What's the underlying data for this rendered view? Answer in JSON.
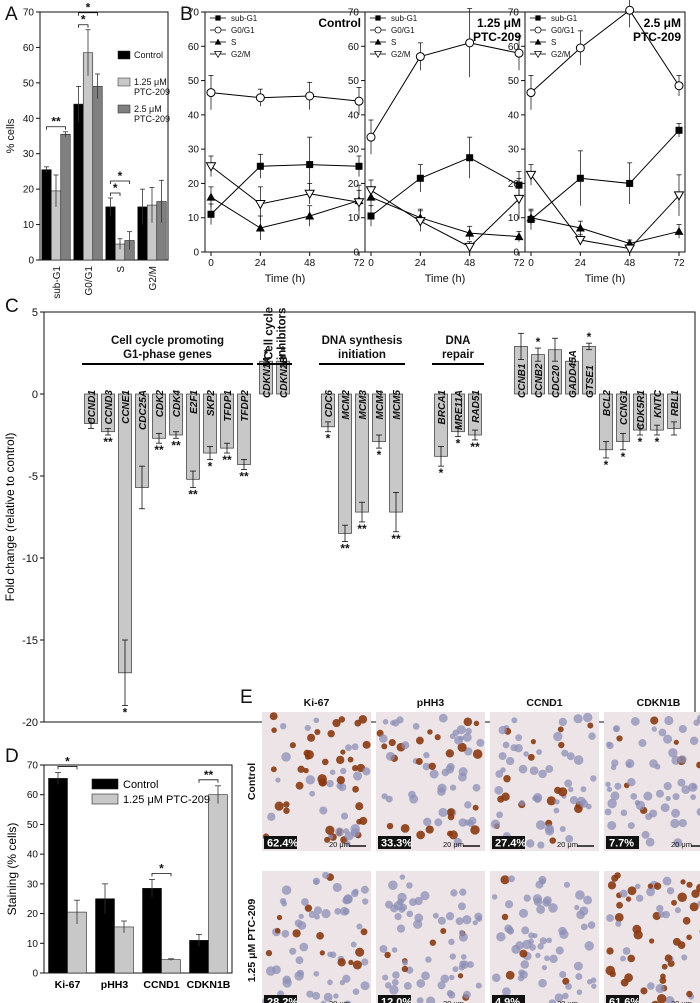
{
  "panel_labels": [
    "A",
    "B",
    "C",
    "D",
    "E"
  ],
  "chart_data": [
    {
      "id": "A",
      "type": "bar",
      "ylabel": "% cells",
      "ylim": [
        0,
        70
      ],
      "yticks": [
        0,
        10,
        20,
        30,
        40,
        50,
        60,
        70
      ],
      "categories": [
        "sub-G1",
        "G0/G1",
        "S",
        "G2/M"
      ],
      "series": [
        {
          "name": "Control",
          "color": "#000000",
          "values": [
            25.5,
            44,
            15,
            15
          ],
          "errors": [
            0.8,
            5,
            2.5,
            5
          ]
        },
        {
          "name": "1.25 μM PTC-209",
          "color": "#c8c8c8",
          "values": [
            19.5,
            58.5,
            4.5,
            15.5
          ],
          "errors": [
            4.5,
            6.5,
            1.5,
            5
          ]
        },
        {
          "name": "2.5 μM PTC-209",
          "color": "#808080",
          "values": [
            35.5,
            49,
            5.5,
            16.5
          ],
          "errors": [
            0.7,
            3.5,
            2.5,
            6
          ]
        }
      ],
      "legend": [
        "Control",
        "1.25 μM",
        "PTC-209",
        "2.5 μM",
        "PTC-209"
      ],
      "significance": [
        {
          "category": 0,
          "a": 0,
          "b": 2,
          "label": "**"
        },
        {
          "category": 1,
          "a": 0,
          "b": 1,
          "label": "*"
        },
        {
          "category": 1,
          "a": 0,
          "b": 2,
          "label": "*"
        },
        {
          "category": 2,
          "a": 0,
          "b": 1,
          "label": "*"
        },
        {
          "category": 2,
          "a": 0,
          "b": 2,
          "label": "*"
        }
      ]
    },
    {
      "id": "B",
      "type": "line",
      "xlabel": "Time (h)",
      "xticks": [
        0,
        24,
        48,
        72
      ],
      "ylim": [
        0,
        70
      ],
      "yticks": [
        0,
        10,
        20,
        30,
        40,
        50,
        60,
        70
      ],
      "legend": [
        "sub-G1",
        "G0/G1",
        "S",
        "G2/M"
      ],
      "plots": [
        {
          "title": "Control",
          "series": [
            {
              "name": "sub-G1",
              "marker": "square",
              "x": [
                0,
                24,
                48,
                72
              ],
              "y": [
                11,
                25,
                25.5,
                25
              ],
              "err": [
                3,
                3.5,
                8,
                3
              ]
            },
            {
              "name": "G0/G1",
              "marker": "circle",
              "x": [
                0,
                24,
                48,
                72
              ],
              "y": [
                46.5,
                45,
                45.5,
                44
              ],
              "err": [
                5,
                2.5,
                4,
                4
              ]
            },
            {
              "name": "S",
              "marker": "triangle-up",
              "x": [
                0,
                24,
                48,
                72
              ],
              "y": [
                16,
                7,
                10.5,
                15
              ],
              "err": [
                3,
                3.5,
                3,
                3
              ]
            },
            {
              "name": "G2/M",
              "marker": "triangle-down",
              "x": [
                0,
                24,
                48,
                72
              ],
              "y": [
                25,
                14,
                17,
                14.5
              ],
              "err": [
                3,
                5,
                3,
                5
              ]
            }
          ]
        },
        {
          "title": [
            "1.25 μM",
            "PTC-209"
          ],
          "series": [
            {
              "name": "sub-G1",
              "marker": "square",
              "x": [
                0,
                24,
                48,
                72
              ],
              "y": [
                10.5,
                21.5,
                27.5,
                19.5
              ],
              "err": [
                3,
                4,
                6,
                4
              ]
            },
            {
              "name": "G0/G1",
              "marker": "circle",
              "x": [
                0,
                24,
                48,
                72
              ],
              "y": [
                33.5,
                57,
                61,
                58
              ],
              "err": [
                5,
                4,
                10,
                5
              ]
            },
            {
              "name": "S",
              "marker": "triangle-up",
              "x": [
                0,
                24,
                48,
                72
              ],
              "y": [
                16,
                10,
                5.5,
                4.5
              ],
              "err": [
                3,
                2.5,
                2,
                1.5
              ]
            },
            {
              "name": "G2/M",
              "marker": "triangle-down",
              "x": [
                0,
                24,
                48,
                72
              ],
              "y": [
                18,
                9,
                1.5,
                15.5
              ],
              "err": [
                3,
                3,
                1.5,
                6
              ]
            }
          ]
        },
        {
          "title": [
            "2.5 μM",
            "PTC-209"
          ],
          "series": [
            {
              "name": "sub-G1",
              "marker": "square",
              "x": [
                0,
                24,
                48,
                72
              ],
              "y": [
                9.5,
                21.5,
                20,
                35.5
              ],
              "err": [
                3,
                8,
                6,
                2
              ]
            },
            {
              "name": "G0/G1",
              "marker": "circle",
              "x": [
                0,
                24,
                48,
                72
              ],
              "y": [
                46.5,
                59.5,
                70.5,
                48.5
              ],
              "err": [
                5,
                5,
                5,
                3
              ]
            },
            {
              "name": "S",
              "marker": "triangle-up",
              "x": [
                0,
                24,
                48,
                72
              ],
              "y": [
                10,
                7,
                2.5,
                6
              ],
              "err": [
                2,
                2,
                1,
                2
              ]
            },
            {
              "name": "G2/M",
              "marker": "triangle-down",
              "x": [
                0,
                24,
                48,
                72
              ],
              "y": [
                22.5,
                3.5,
                1,
                16.5
              ],
              "err": [
                3,
                1.5,
                1,
                6
              ]
            }
          ]
        }
      ]
    },
    {
      "id": "C",
      "type": "bar",
      "ylabel": "Fold change (relative to control)",
      "ylim": [
        -20,
        5
      ],
      "yticks": [
        5,
        0,
        -5,
        -10,
        -15,
        -20
      ],
      "groups": [
        {
          "title": [
            "Cell cycle promoting",
            "G1-phase genes"
          ],
          "first": 0,
          "last": 9
        },
        {
          "title": [
            "Cell cycle",
            "inhibitors"
          ],
          "first": 10,
          "last": 11
        },
        {
          "title": [
            "DNA synthesis",
            "initiation"
          ],
          "first": 12,
          "last": 16
        },
        {
          "title": [
            "DNA",
            "repair"
          ],
          "first": 17,
          "last": 19
        }
      ],
      "genes": [
        {
          "name": "CCND1",
          "value": -1.8,
          "error": 0.3,
          "sig": ""
        },
        {
          "name": "CCND3",
          "value": -2.3,
          "error": 0.2,
          "sig": "**"
        },
        {
          "name": "CCNE1",
          "value": -17,
          "error": 2,
          "sig": "*"
        },
        {
          "name": "CDC25A",
          "value": -5.7,
          "error": 1.3,
          "sig": ""
        },
        {
          "name": "CDK2",
          "value": -2.7,
          "error": 0.3,
          "sig": "**"
        },
        {
          "name": "CDK4",
          "value": -2.5,
          "error": 0.2,
          "sig": "**"
        },
        {
          "name": "E2F1",
          "value": -5.2,
          "error": 0.5,
          "sig": "**"
        },
        {
          "name": "SKP2",
          "value": -3.6,
          "error": 0.4,
          "sig": "*"
        },
        {
          "name": "TFDP1",
          "value": -3.3,
          "error": 0.3,
          "sig": "**"
        },
        {
          "name": "TFDP2",
          "value": -4.3,
          "error": 0.3,
          "sig": "**"
        },
        {
          "name": "CDKN1A",
          "value": 2.0,
          "error": 0.1,
          "sig": "*"
        },
        {
          "name": "CDKN2B",
          "value": 2.0,
          "error": 0.3,
          "sig": "*"
        },
        {
          "name": "CDC6",
          "value": -2.0,
          "error": 0.3,
          "sig": "*"
        },
        {
          "name": "MCM2",
          "value": -8.5,
          "error": 0.5,
          "sig": "**"
        },
        {
          "name": "MCM3",
          "value": -7.2,
          "error": 0.6,
          "sig": "**"
        },
        {
          "name": "MCM4",
          "value": -2.9,
          "error": 0.4,
          "sig": "*"
        },
        {
          "name": "MCM5",
          "value": -7.2,
          "error": 1.2,
          "sig": "**"
        },
        {
          "name": "BRCA1",
          "value": -3.8,
          "error": 0.6,
          "sig": "*"
        },
        {
          "name": "MRE11A",
          "value": -2.3,
          "error": 0.3,
          "sig": "*"
        },
        {
          "name": "RAD51",
          "value": -2.5,
          "error": 0.3,
          "sig": "**"
        },
        {
          "name": "CCNB1",
          "value": 2.9,
          "error": 0.8,
          "sig": ""
        },
        {
          "name": "CCNB2",
          "value": 2.4,
          "error": 0.4,
          "sig": "*"
        },
        {
          "name": "CDC20",
          "value": 2.7,
          "error": 0.7,
          "sig": ""
        },
        {
          "name": "GADD45A",
          "value": 2.0,
          "error": 0.2,
          "sig": ""
        },
        {
          "name": "GTSE1",
          "value": 2.9,
          "error": 0.2,
          "sig": "*"
        },
        {
          "name": "BCL2",
          "value": -3.4,
          "error": 0.5,
          "sig": "*"
        },
        {
          "name": "CCNG1",
          "value": -2.9,
          "error": 0.5,
          "sig": "*"
        },
        {
          "name": "CDK5R1",
          "value": -2.2,
          "error": 0.3,
          "sig": "*"
        },
        {
          "name": "KNTC",
          "value": -2.2,
          "error": 0.3,
          "sig": "*"
        },
        {
          "name": "RBL1",
          "value": -2.1,
          "error": 0.4,
          "sig": ""
        }
      ]
    },
    {
      "id": "D",
      "type": "bar",
      "ylabel": "Staining (% cells)",
      "ylim": [
        0,
        70
      ],
      "yticks": [
        0,
        10,
        20,
        30,
        40,
        50,
        60,
        70
      ],
      "categories": [
        "Ki-67",
        "pHH3",
        "CCND1",
        "CDKN1B"
      ],
      "series": [
        {
          "name": "Control",
          "color": "#000000",
          "values": [
            65.5,
            25,
            28.5,
            11
          ],
          "errors": [
            2,
            5,
            3,
            2
          ]
        },
        {
          "name": "1.25 μM PTC-209",
          "color": "#c8c8c8",
          "values": [
            20.5,
            15.5,
            4.5,
            60
          ],
          "errors": [
            4,
            2,
            0.3,
            3
          ]
        }
      ],
      "significance": [
        {
          "category": 0,
          "label": "*"
        },
        {
          "category": 2,
          "label": "*"
        },
        {
          "category": 3,
          "label": "**"
        }
      ]
    }
  ],
  "panel_e": {
    "columns": [
      "Ki-67",
      "pHH3",
      "CCND1",
      "CDKN1B"
    ],
    "rows": [
      "Control",
      "1.25 μM PTC-209"
    ],
    "scale_bar": "20 μm",
    "percentages": [
      [
        "62.4%",
        "33.3%",
        "27.4%",
        "7.7%"
      ],
      [
        "28.2%",
        "12.0%",
        "4.9%",
        "61.6%"
      ]
    ],
    "positive_fraction": [
      [
        0.624,
        0.333,
        0.274,
        0.077
      ],
      [
        0.282,
        0.12,
        0.049,
        0.616
      ]
    ]
  },
  "colors": {
    "brown": "#8a3a12",
    "blue": "#8e8fb6",
    "tissue": "#ece4e6"
  }
}
